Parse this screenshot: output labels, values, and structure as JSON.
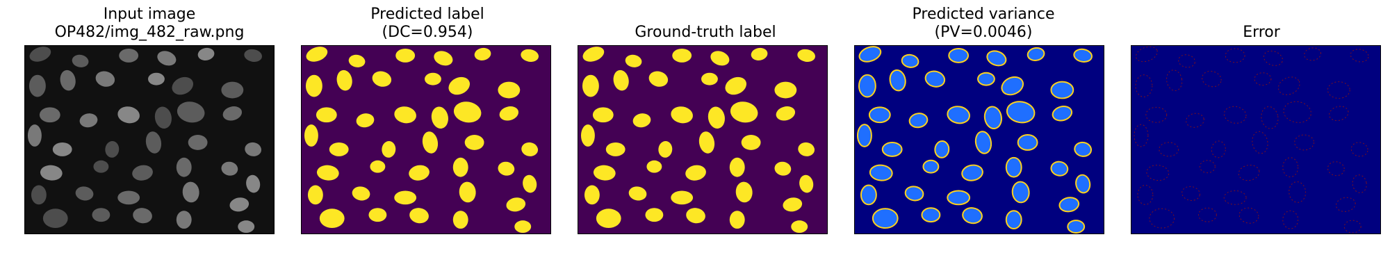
{
  "figure": {
    "panels": [
      {
        "id": "input",
        "title_line1": "Input image",
        "title_line2": "OP482/img_482_raw.png",
        "style": {
          "background": "#111111",
          "nucleus_fill": "#8a8a8a",
          "nucleus_stroke": "none"
        }
      },
      {
        "id": "predicted-label",
        "title_line1": "Predicted label",
        "title_line2": "(DC=0.954)",
        "style": {
          "background": "#440154",
          "nucleus_fill": "#fde725",
          "nucleus_stroke": "none"
        }
      },
      {
        "id": "ground-truth-label",
        "title_line1": "Ground-truth label",
        "title_line2": "",
        "style": {
          "background": "#440154",
          "nucleus_fill": "#fde725",
          "nucleus_stroke": "none"
        }
      },
      {
        "id": "predicted-variance",
        "title_line1": "Predicted variance",
        "title_line2": "(PV=0.0046)",
        "style": {
          "background": "#00007f",
          "nucleus_fill": "#1f6fff",
          "nucleus_stroke": "#ffd21a"
        }
      },
      {
        "id": "error",
        "title_line1": "Error",
        "title_line2": "",
        "style": {
          "background": "#00007f",
          "nucleus_fill": "none",
          "nucleus_stroke": "#7a1020"
        }
      }
    ]
  }
}
